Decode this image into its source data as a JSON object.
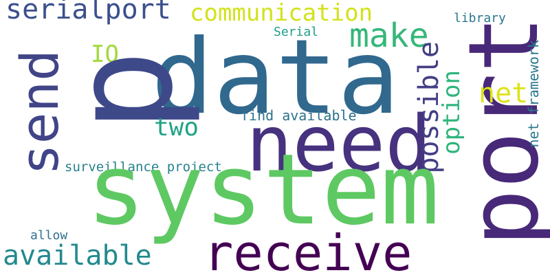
{
  "words": {
    "serialport": {
      "text": "serialport",
      "color": "#3b4f8c"
    },
    "communication": {
      "text": "communication",
      "color": "#d2e21b"
    },
    "make": {
      "text": "make",
      "color": "#35b779"
    },
    "library": {
      "text": "library",
      "color": "#2a788e"
    },
    "net_framework": {
      "text": "net framework",
      "color": "#2a788e"
    },
    "serial": {
      "text": "Serial",
      "color": "#1f9e89"
    },
    "io": {
      "text": "IO",
      "color": "#a0da39"
    },
    "data": {
      "text": "data",
      "color": "#31688e"
    },
    "port": {
      "text": "port",
      "color": "#482878"
    },
    "p": {
      "text": "p",
      "color": "#3e4989"
    },
    "send": {
      "text": "send",
      "color": "#414487"
    },
    "need": {
      "text": "need",
      "color": "#46327e"
    },
    "possible": {
      "text": "possible",
      "color": "#433e85"
    },
    "option": {
      "text": "option",
      "color": "#2fb47c"
    },
    "net": {
      "text": "net",
      "color": "#dde318"
    },
    "find_available": {
      "text": "find available",
      "color": "#2c728e"
    },
    "two": {
      "text": "two",
      "color": "#20a486"
    },
    "surveillance_project": {
      "text": "surveillance project",
      "color": "#26828e"
    },
    "system": {
      "text": "system",
      "color": "#5ec962"
    },
    "allow": {
      "text": "allow",
      "color": "#2e6e8e"
    },
    "available": {
      "text": "available",
      "color": "#23898e"
    },
    "receive": {
      "text": "receive",
      "color": "#440154"
    }
  }
}
